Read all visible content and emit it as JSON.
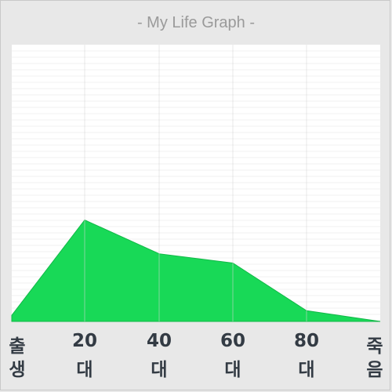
{
  "chart_data": {
    "type": "area",
    "title": "- My Life Graph -",
    "x_ticks": [
      {
        "top": "출",
        "bottom": "생"
      },
      {
        "top": "20",
        "bottom": "대"
      },
      {
        "top": "40",
        "bottom": "대"
      },
      {
        "top": "60",
        "bottom": "대"
      },
      {
        "top": "80",
        "bottom": "대"
      },
      {
        "top": "죽",
        "bottom": "음"
      }
    ],
    "x": [
      0,
      1,
      2,
      3,
      4,
      5
    ],
    "values": [
      2,
      33,
      22,
      19,
      3.5,
      0
    ],
    "ylim": [
      0,
      90
    ],
    "grid": {
      "vertical": true,
      "horizontal_faint": true
    },
    "legend": "none",
    "colors": {
      "fill": "#18d957",
      "outline": "#12b848",
      "plot_background": "#ffffff",
      "grid": "#d6d6d6",
      "page_background": "#e8e8e8"
    }
  }
}
